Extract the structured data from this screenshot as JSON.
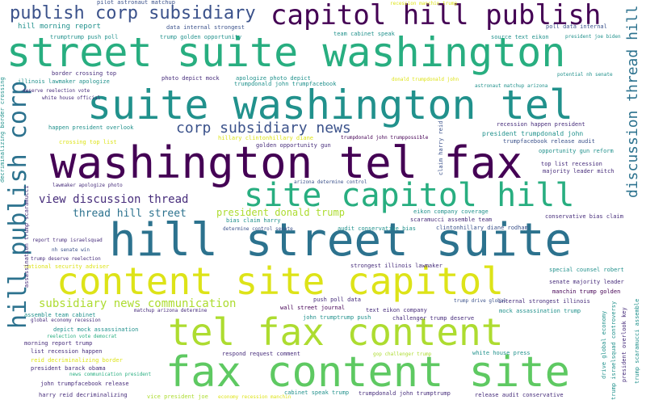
{
  "palette": {
    "dark_purple": "#440154",
    "indigo": "#472d7b",
    "blue": "#3b528b",
    "steel": "#2c728e",
    "teal": "#21918c",
    "sea": "#28ae80",
    "green": "#5ec962",
    "lime": "#addc30",
    "yellow": "#dde318"
  },
  "words": [
    {
      "text": "washington tel fax",
      "color": "dark_purple"
    },
    {
      "text": "hill street suite",
      "color": "steel"
    },
    {
      "text": "street suite washington",
      "color": "sea"
    },
    {
      "text": "suite washington tel",
      "color": "teal"
    },
    {
      "text": "fax content site",
      "color": "green"
    },
    {
      "text": "tel fax content",
      "color": "lime"
    },
    {
      "text": "content site capitol",
      "color": "yellow"
    },
    {
      "text": "site capitol hill",
      "color": "sea"
    },
    {
      "text": "capitol hill publish",
      "color": "dark_purple"
    },
    {
      "text": "publish corp subsidiary",
      "color": "blue"
    },
    {
      "text": "hill publish corp",
      "color": "steel"
    },
    {
      "text": "corp subsidiary news",
      "color": "blue"
    },
    {
      "text": "discussion thread hill",
      "color": "steel"
    },
    {
      "text": "subsidiary news communication",
      "color": "lime"
    },
    {
      "text": "view discussion thread",
      "color": "indigo"
    },
    {
      "text": "thread hill street",
      "color": "steel"
    },
    {
      "text": "president donald trump",
      "color": "lime"
    },
    {
      "text": "hill morning report",
      "color": "teal"
    },
    {
      "text": "pilot astronaut matchup",
      "color": "blue"
    },
    {
      "text": "trumptrump push poll",
      "color": "teal"
    },
    {
      "text": "trump golden opportunity",
      "color": "teal"
    },
    {
      "text": "data internal strongest",
      "color": "blue"
    },
    {
      "text": "team cabinet speak",
      "color": "teal"
    },
    {
      "text": "recession manchin trump",
      "color": "yellow"
    },
    {
      "text": "poll data internal",
      "color": "blue"
    },
    {
      "text": "source text eikon",
      "color": "teal"
    },
    {
      "text": "president joe biden",
      "color": "teal"
    },
    {
      "text": "border crossing top",
      "color": "indigo"
    },
    {
      "text": "photo depict mock",
      "color": "indigo"
    },
    {
      "text": "apologize photo depict",
      "color": "teal"
    },
    {
      "text": "trumpdonald john trumpfacebook",
      "color": "teal"
    },
    {
      "text": "donald trumpdonald john",
      "color": "yellow"
    },
    {
      "text": "astronaut matchup arizona",
      "color": "teal"
    },
    {
      "text": "potential nh senate",
      "color": "teal"
    },
    {
      "text": "illinois lawmaker apologize",
      "color": "teal"
    },
    {
      "text": "deserve reelection vote",
      "color": "indigo"
    },
    {
      "text": "white house official",
      "color": "indigo"
    },
    {
      "text": "happen president overlook",
      "color": "teal"
    },
    {
      "text": "crossing top list",
      "color": "yellow"
    },
    {
      "text": "hillary clintonhillary diane",
      "color": "yellow"
    },
    {
      "text": "trumpdonald john trumppossible",
      "color": "dark_purple"
    },
    {
      "text": "golden opportunity gun",
      "color": "indigo"
    },
    {
      "text": "claim harry reid",
      "color": "blue"
    },
    {
      "text": "recession happen president",
      "color": "indigo"
    },
    {
      "text": "president trumpdonald john",
      "color": "teal"
    },
    {
      "text": "trumpfacebook release audit",
      "color": "blue"
    },
    {
      "text": "opportunity gun reform",
      "color": "teal"
    },
    {
      "text": "top list recession",
      "color": "indigo"
    },
    {
      "text": "majority leader mitch",
      "color": "indigo"
    },
    {
      "text": "lawmaker apologize photo",
      "color": "indigo"
    },
    {
      "text": "arizona determine control",
      "color": "blue"
    },
    {
      "text": "eikon company coverage",
      "color": "teal"
    },
    {
      "text": "conservative bias claim",
      "color": "indigo"
    },
    {
      "text": "bias claim harry",
      "color": "teal"
    },
    {
      "text": "scaramucci assemble team",
      "color": "indigo"
    },
    {
      "text": "determine control senate",
      "color": "blue"
    },
    {
      "text": "audit conservative bias",
      "color": "teal"
    },
    {
      "text": "clintonhillary diane rodham",
      "color": "blue"
    },
    {
      "text": "report trump israelsquad",
      "color": "indigo"
    },
    {
      "text": "nh senate win",
      "color": "blue"
    },
    {
      "text": "trump deserve reelection",
      "color": "indigo"
    },
    {
      "text": "national security adviser",
      "color": "yellow"
    },
    {
      "text": "strongest illinois lawmaker",
      "color": "indigo"
    },
    {
      "text": "special counsel robert",
      "color": "teal"
    },
    {
      "text": "senate majority leader",
      "color": "indigo"
    },
    {
      "text": "manchin trump golden",
      "color": "dark_purple"
    },
    {
      "text": "push poll data",
      "color": "indigo"
    },
    {
      "text": "internal strongest illinois",
      "color": "indigo"
    },
    {
      "text": "trump drive global",
      "color": "blue"
    },
    {
      "text": "wall street journal",
      "color": "dark_purple"
    },
    {
      "text": "mock assassination trump",
      "color": "teal"
    },
    {
      "text": "assemble team cabinet",
      "color": "teal"
    },
    {
      "text": "matchup arizona determine",
      "color": "indigo"
    },
    {
      "text": "text eikon company",
      "color": "indigo"
    },
    {
      "text": "global economy recession",
      "color": "indigo"
    },
    {
      "text": "john trumptrump push",
      "color": "teal"
    },
    {
      "text": "challenger trump deserve",
      "color": "indigo"
    },
    {
      "text": "depict mock assassination",
      "color": "teal"
    },
    {
      "text": "reelection vote democrat",
      "color": "sea"
    },
    {
      "text": "morning report trump",
      "color": "indigo"
    },
    {
      "text": "list recession happen",
      "color": "indigo"
    },
    {
      "text": "reid decriminalizing border",
      "color": "yellow"
    },
    {
      "text": "respond request comment",
      "color": "indigo"
    },
    {
      "text": "gop challenger trump",
      "color": "lime"
    },
    {
      "text": "white house press",
      "color": "teal"
    },
    {
      "text": "president barack obama",
      "color": "indigo"
    },
    {
      "text": "news communication president",
      "color": "sea"
    },
    {
      "text": "john trumpfacebook release",
      "color": "indigo"
    },
    {
      "text": "harry reid decriminalizing",
      "color": "indigo"
    },
    {
      "text": "vice president joe",
      "color": "lime"
    },
    {
      "text": "economy recession manchin",
      "color": "yellow"
    },
    {
      "text": "cabinet speak trump",
      "color": "teal"
    },
    {
      "text": "trumpdonald john trumptrump",
      "color": "indigo"
    },
    {
      "text": "release audit conservative",
      "color": "indigo"
    },
    {
      "text": "drive global economy",
      "color": "teal"
    },
    {
      "text": "trump israelsquad controversy",
      "color": "teal"
    },
    {
      "text": "president overlook key",
      "color": "indigo"
    },
    {
      "text": "trump scaramucci assemble",
      "color": "teal"
    },
    {
      "text": "decriminalizing border crossing",
      "color": "teal"
    },
    {
      "text": "assassination trump scaramucci",
      "color": "indigo"
    },
    {
      "text": "potential nh senate",
      "color": "teal"
    }
  ]
}
